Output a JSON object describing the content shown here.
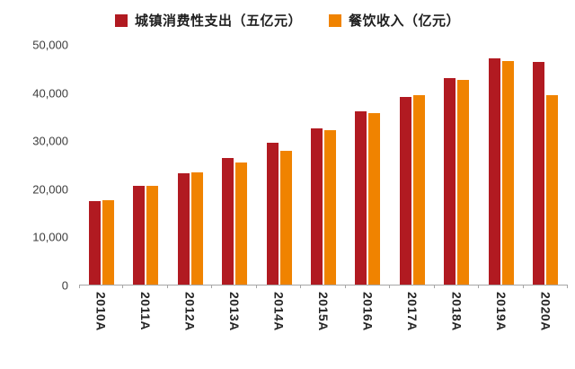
{
  "chart_data": {
    "type": "bar",
    "title": "",
    "xlabel": "",
    "ylabel": "",
    "categories": [
      "2010A",
      "2011A",
      "2012A",
      "2013A",
      "2014A",
      "2015A",
      "2016A",
      "2017A",
      "2018A",
      "2019A",
      "2020A"
    ],
    "series": [
      {
        "name": "城镇消费性支出（五亿元）",
        "color": "#B11A21",
        "values": [
          17500,
          20600,
          23300,
          26500,
          29500,
          32500,
          36200,
          39200,
          43000,
          47200,
          46500
        ]
      },
      {
        "name": "餐饮收入（亿元）",
        "color": "#F08300",
        "values": [
          17650,
          20650,
          23350,
          25400,
          27900,
          32300,
          35800,
          39600,
          42700,
          46700,
          39500
        ]
      }
    ],
    "ylim": [
      0,
      50000
    ],
    "y_ticks": [
      0,
      10000,
      20000,
      30000,
      40000,
      50000
    ],
    "grid": false,
    "legend_position": "top"
  },
  "colors": {
    "axis": "#A6A6A6",
    "tick_label": "#3D3D3D",
    "x_label": "#262626",
    "legend_text": "#1F1F1F",
    "background": "#FFFFFF"
  }
}
